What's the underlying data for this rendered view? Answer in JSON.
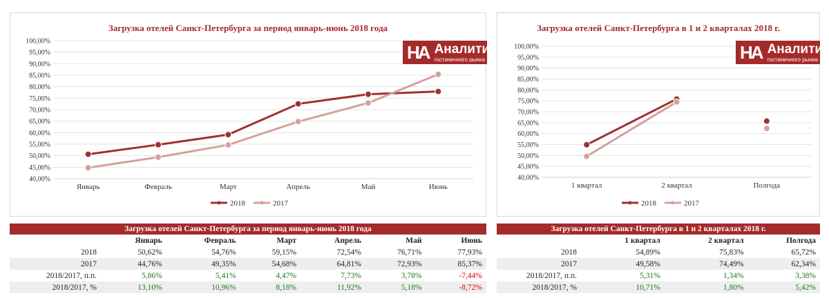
{
  "brand": {
    "mark": "HA",
    "name": "Аналитика",
    "subtitle": "гостиничного рынка",
    "color": "#a52a2a"
  },
  "colors": {
    "s2018": "#a0302e",
    "s2017": "#d4a19c",
    "positive": "#1a7a1a",
    "negative": "#e00000"
  },
  "chart_data": [
    {
      "type": "line",
      "title": "Загрузка отелей Санкт-Петербурга за период январь-июнь 2018 года",
      "categories": [
        "Январь",
        "Февраль",
        "Март",
        "Апрель",
        "Май",
        "Июнь"
      ],
      "series": [
        {
          "name": "2018",
          "values": [
            50.62,
            54.76,
            59.15,
            72.54,
            76.71,
            77.93
          ]
        },
        {
          "name": "2017",
          "values": [
            44.76,
            49.35,
            54.68,
            64.81,
            72.93,
            85.37
          ]
        }
      ],
      "ylim": [
        40,
        100
      ],
      "yticks": [
        "40,00%",
        "45,00%",
        "50,00%",
        "55,00%",
        "60,00%",
        "65,00%",
        "70,00%",
        "75,00%",
        "80,00%",
        "85,00%",
        "90,00%",
        "95,00%",
        "100,00%"
      ],
      "legend": "bottom",
      "grid": true
    },
    {
      "type": "line",
      "title": "Загрузка отелей Санкт-Петербурга в 1 и 2 кварталах 2018 г.",
      "categories": [
        "1 квартал",
        "2 квартал",
        "Полгода"
      ],
      "series": [
        {
          "name": "2018",
          "values": [
            54.89,
            75.83,
            65.72
          ]
        },
        {
          "name": "2017",
          "values": [
            49.58,
            74.49,
            62.34
          ]
        }
      ],
      "ylim": [
        40,
        100
      ],
      "yticks": [
        "40,00%",
        "45,00%",
        "50,00%",
        "55,00%",
        "60,00%",
        "65,00%",
        "70,00%",
        "75,00%",
        "80,00%",
        "85,00%",
        "90,00%",
        "95,00%",
        "100,00%"
      ],
      "legend": "bottom",
      "grid": true
    }
  ],
  "table1": {
    "title": "Загрузка отелей Санкт-Петербурга за период январь-июнь 2018 года",
    "headers": [
      "Январь",
      "Февраль",
      "Март",
      "Апрель",
      "Май",
      "Июнь"
    ],
    "rows": [
      {
        "label": "2018",
        "cells": [
          "50,62%",
          "54,76%",
          "59,15%",
          "72,54%",
          "76,71%",
          "77,93%"
        ]
      },
      {
        "label": "2017",
        "cells": [
          "44,76%",
          "49,35%",
          "54,68%",
          "64,81%",
          "72,93%",
          "85,37%"
        ]
      },
      {
        "label": "2018/2017, п.п.",
        "cells": [
          "5,86%",
          "5,41%",
          "4,47%",
          "7,73%",
          "3,78%",
          "-7,44%"
        ]
      },
      {
        "label": "2018/2017, %",
        "cells": [
          "13,10%",
          "10,96%",
          "8,18%",
          "11,92%",
          "5,18%",
          "-8,72%"
        ]
      }
    ]
  },
  "table2": {
    "title": "Загрузка отелей Санкт-Петербурга в 1 и 2 кварталах 2018 г.",
    "headers": [
      "1 квартал",
      "2 квартал",
      "Полгода"
    ],
    "rows": [
      {
        "label": "2018",
        "cells": [
          "54,89%",
          "75,83%",
          "65,72%"
        ]
      },
      {
        "label": "2017",
        "cells": [
          "49,58%",
          "74,49%",
          "62,34%"
        ]
      },
      {
        "label": "2018/2017, п.п.",
        "cells": [
          "5,31%",
          "1,34%",
          "3,38%"
        ]
      },
      {
        "label": "2018/2017, %",
        "cells": [
          "10,71%",
          "1,80%",
          "5,42%"
        ]
      }
    ]
  }
}
